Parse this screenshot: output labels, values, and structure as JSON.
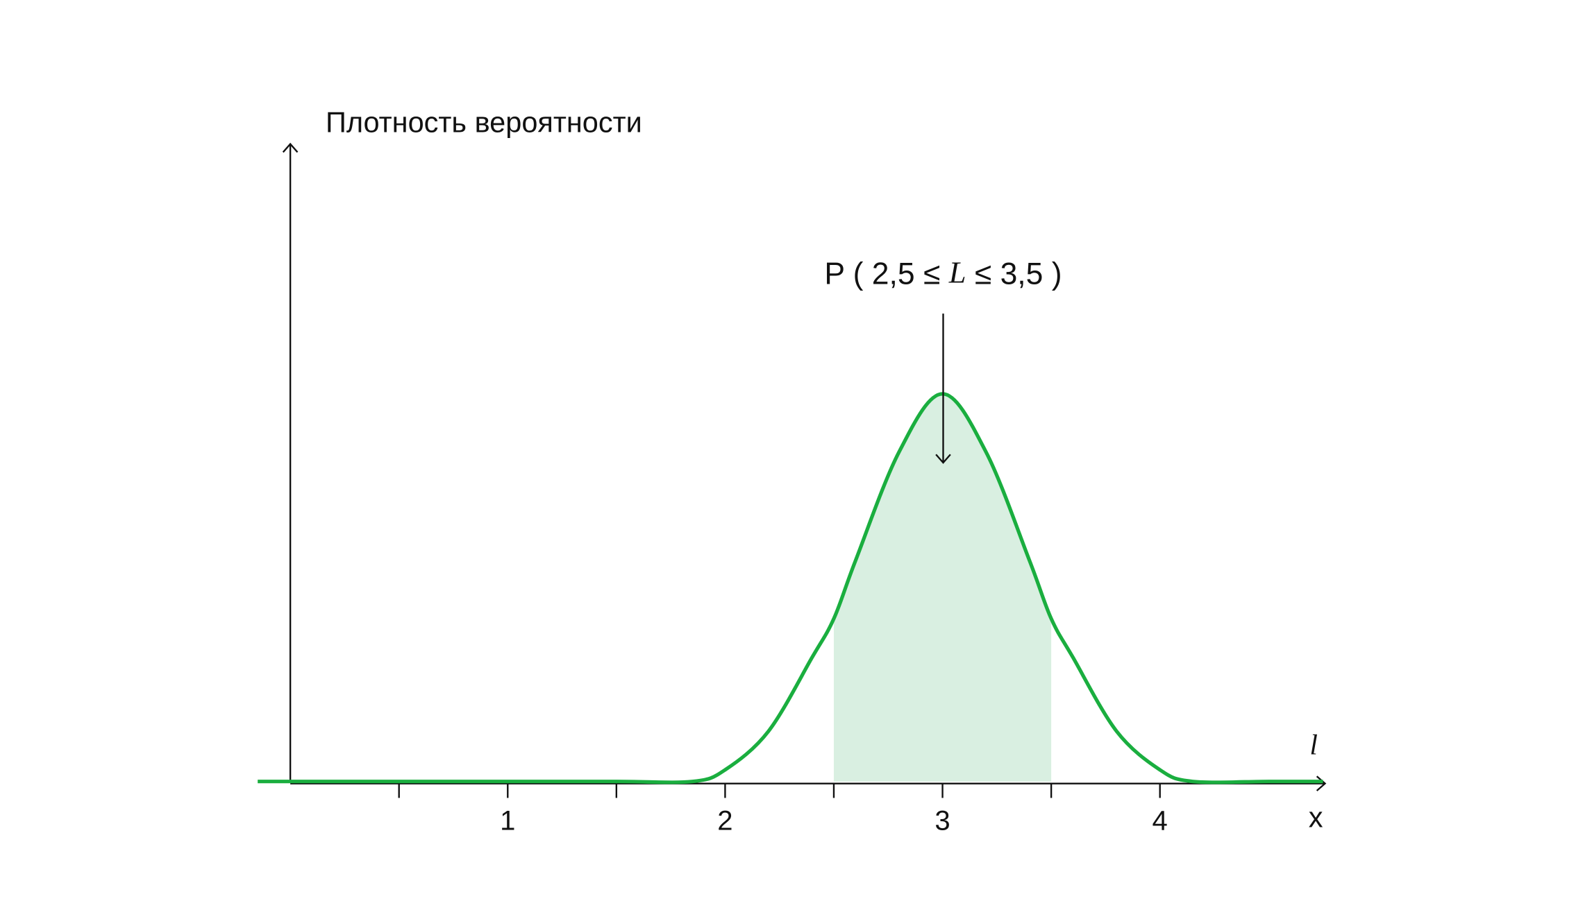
{
  "chart_data": {
    "type": "line",
    "y_label": "Плотность вероятности",
    "x_label": "x",
    "variable": "l",
    "annotation": [
      "P ( 2,5 ≤ ",
      "L",
      " ≤ 3,5 )"
    ],
    "x": [
      -0.15,
      0,
      0.5,
      1,
      1.5,
      1.85,
      2,
      2.2,
      2.4,
      2.5,
      2.6,
      2.8,
      3,
      3.2,
      3.4,
      3.5,
      3.6,
      3.8,
      4,
      4.15,
      4.5,
      4.75
    ],
    "values": [
      0,
      0,
      0,
      0,
      0,
      0,
      0.03,
      0.13,
      0.32,
      0.42,
      0.57,
      0.85,
      1.0,
      0.85,
      0.57,
      0.42,
      0.32,
      0.13,
      0.03,
      0,
      0,
      0
    ],
    "color": "#1aae3f",
    "shade": [
      2.5,
      3.5
    ],
    "shade_color": "#d9efe1",
    "xlim": [
      -0.15,
      4.75
    ],
    "ylim": [
      0,
      1.65
    ],
    "xticks": [
      1,
      2,
      3,
      4
    ],
    "minor_xticks": [
      0.5,
      1.5,
      2.5,
      3.5
    ]
  }
}
